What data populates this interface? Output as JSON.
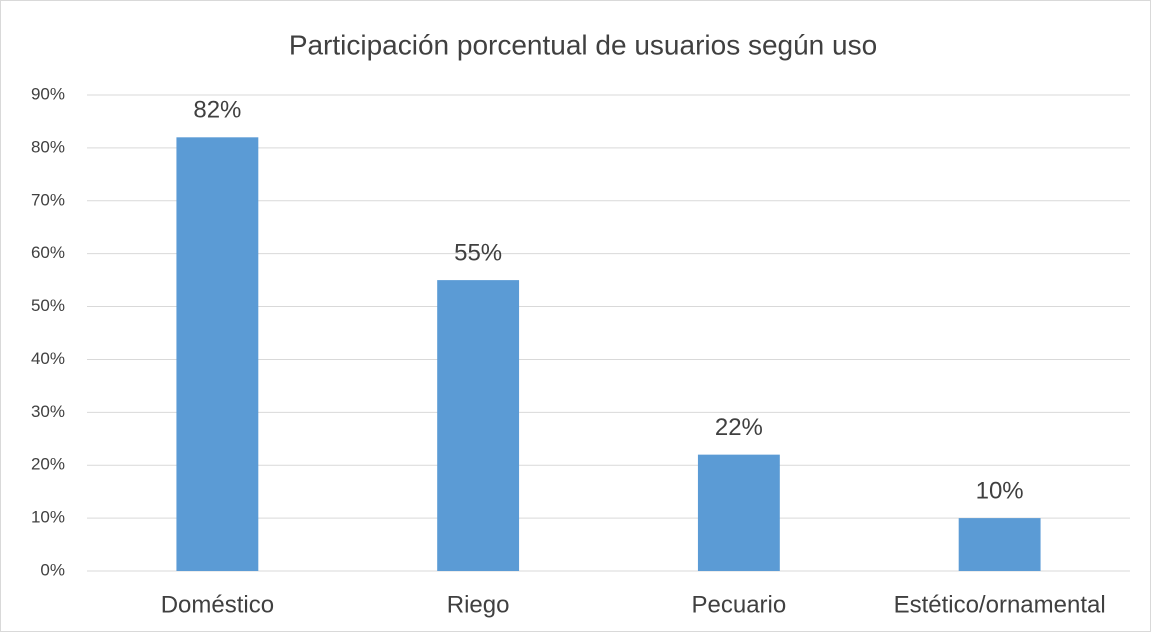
{
  "chart_data": {
    "type": "bar",
    "title": "Participación porcentual de usuarios según uso",
    "categories": [
      "Doméstico",
      "Riego",
      "Pecuario",
      "Estético/ornamental"
    ],
    "values": [
      82,
      55,
      22,
      10
    ],
    "value_labels": [
      "82%",
      "55%",
      "22%",
      "10%"
    ],
    "color": "#5b9bd5",
    "ylim": [
      0,
      90
    ],
    "yticks": [
      {
        "value": 0,
        "label": "0%"
      },
      {
        "value": 10,
        "label": "10%"
      },
      {
        "value": 20,
        "label": "20%"
      },
      {
        "value": 30,
        "label": "30%"
      },
      {
        "value": 40,
        "label": "40%"
      },
      {
        "value": 50,
        "label": "50%"
      },
      {
        "value": 60,
        "label": "60%"
      },
      {
        "value": 70,
        "label": "70%"
      },
      {
        "value": 80,
        "label": "80%"
      },
      {
        "value": 90,
        "label": "90%"
      }
    ],
    "grid": true
  }
}
